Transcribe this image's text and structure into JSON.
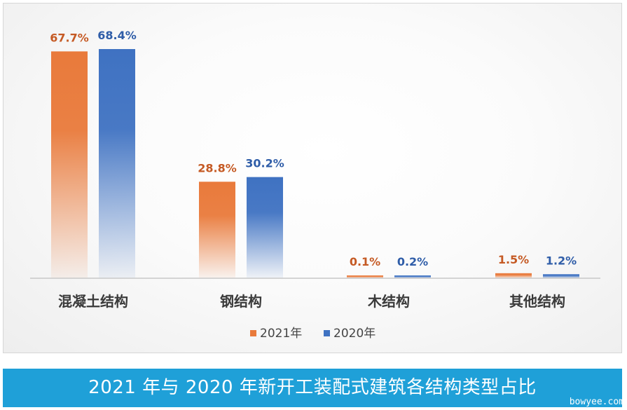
{
  "caption": "2021 年与 2020 年新开工装配式建筑各结构类型占比",
  "watermark": "bowyee.com",
  "colors": {
    "s2021": "#e97a3b",
    "s2020": "#3f72c2",
    "label2021": "#c55a24",
    "label2020": "#2f5da8",
    "category": "#3a3a3a",
    "axis": "#c8c8c8",
    "caption_bg": "#1fa0d8"
  },
  "chart_data": {
    "type": "bar",
    "categories": [
      "混凝土结构",
      "钢结构",
      "木结构",
      "其他结构"
    ],
    "series": [
      {
        "name": "2021年",
        "values": [
          67.7,
          28.8,
          0.1,
          1.5
        ],
        "labels": [
          "67.7%",
          "28.8%",
          "0.1%",
          "1.5%"
        ]
      },
      {
        "name": "2020年",
        "values": [
          68.4,
          30.2,
          0.2,
          1.2
        ],
        "labels": [
          "68.4%",
          "30.2%",
          "0.2%",
          "1.2%"
        ]
      }
    ],
    "ylim": [
      0,
      68.4
    ],
    "grid": false,
    "legend": "bottom-center"
  }
}
